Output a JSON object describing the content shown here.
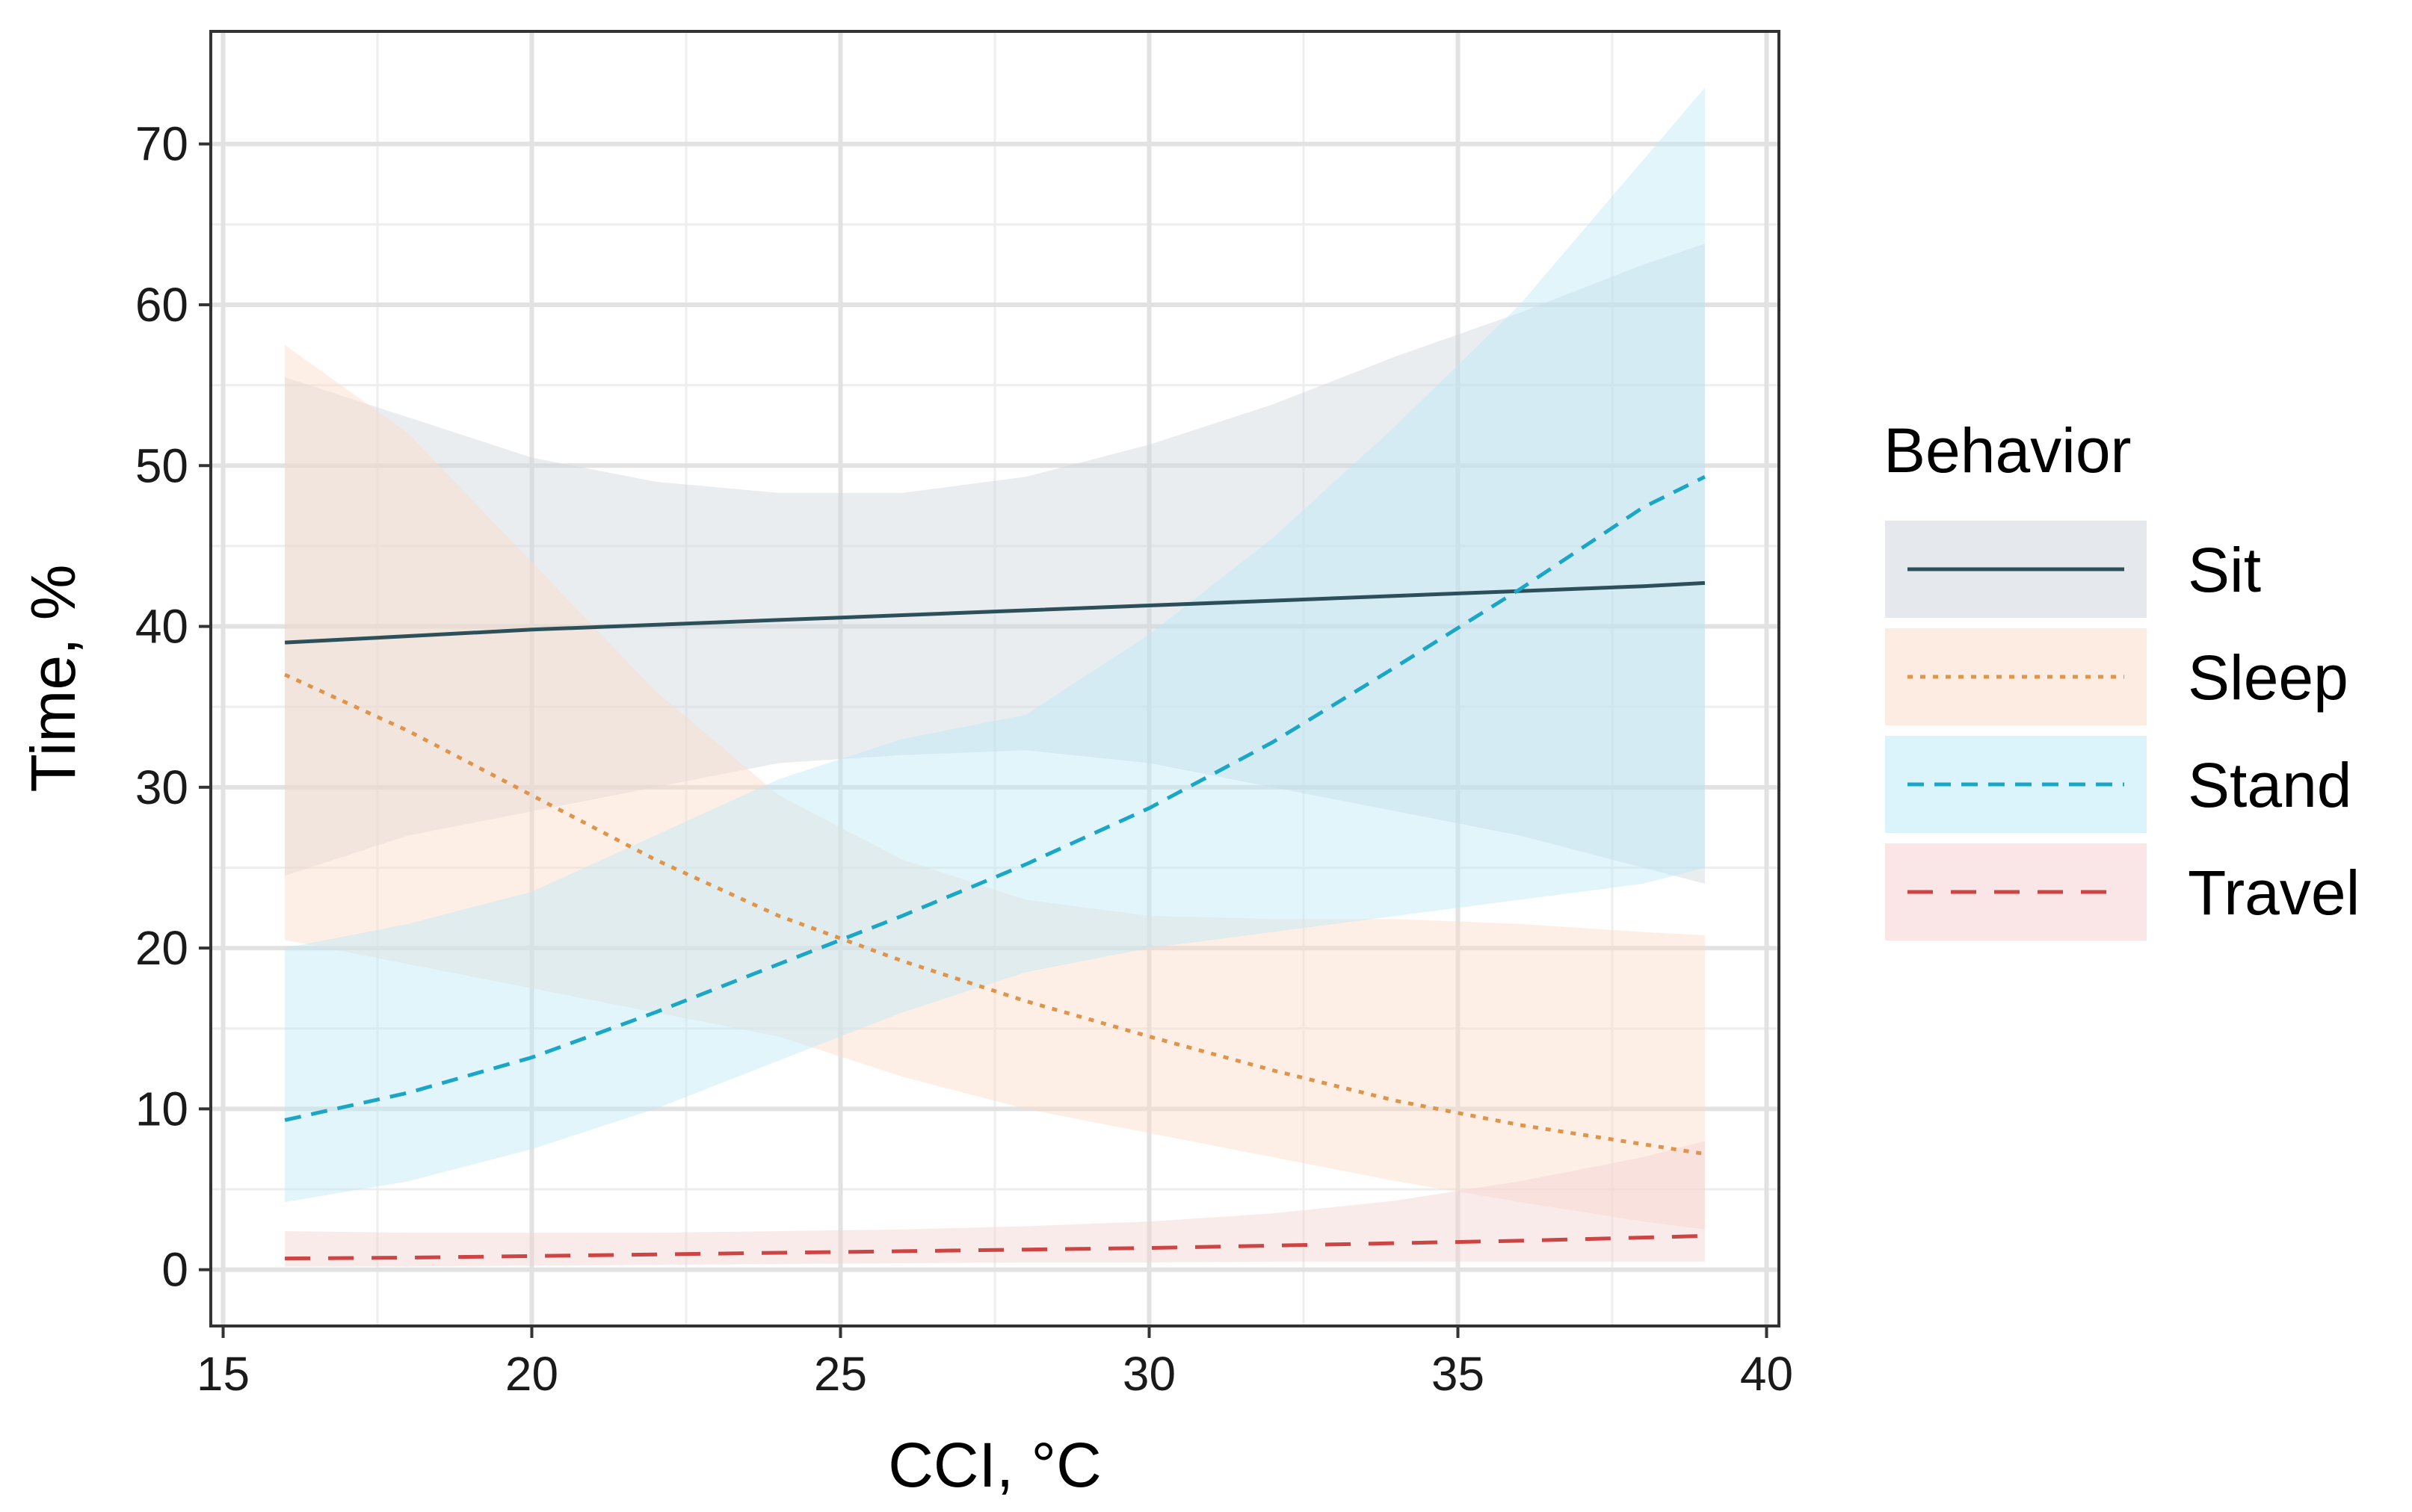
{
  "chart_data": {
    "type": "line",
    "title": "",
    "xlabel": "CCI, °C",
    "ylabel": "Time, %",
    "xlim": [
      14.8,
      40.2
    ],
    "ylim": [
      -3.5,
      77
    ],
    "grid": true,
    "legend_position": "right",
    "legend_title": "Behavior",
    "x_ticks": [
      15,
      20,
      25,
      30,
      35,
      40
    ],
    "y_ticks": [
      0,
      10,
      20,
      30,
      40,
      50,
      60,
      70
    ],
    "x_tick_labels": [
      "15",
      "20",
      "25",
      "30",
      "35",
      "40"
    ],
    "y_tick_labels": [
      "0",
      "10",
      "20",
      "30",
      "40",
      "50",
      "60",
      "70"
    ],
    "x": [
      16,
      18,
      20,
      22,
      24,
      26,
      28,
      30,
      32,
      34,
      36,
      38,
      39
    ],
    "series": [
      {
        "name": "Sit",
        "color": "#2c4f5a",
        "band_color": "#cfd6de",
        "dash": "solid",
        "values": [
          39.0,
          39.4,
          39.8,
          40.1,
          40.4,
          40.7,
          41.0,
          41.3,
          41.6,
          41.9,
          42.2,
          42.5,
          42.7
        ],
        "lower": [
          24.5,
          27.0,
          28.5,
          30.0,
          31.5,
          32.0,
          32.3,
          31.5,
          30.0,
          28.5,
          27.0,
          25.0,
          24.0
        ],
        "upper": [
          55.5,
          53.0,
          50.5,
          49.0,
          48.3,
          48.3,
          49.3,
          51.3,
          53.8,
          56.8,
          59.5,
          62.5,
          63.8
        ]
      },
      {
        "name": "Sleep",
        "color": "#e0944a",
        "band_color": "#fbdcc8",
        "dash": "dotted",
        "values": [
          37.0,
          33.5,
          29.5,
          25.5,
          22.0,
          19.2,
          16.7,
          14.5,
          12.4,
          10.5,
          9.0,
          7.8,
          7.2
        ],
        "lower": [
          20.5,
          19.0,
          17.5,
          16.0,
          14.5,
          12.0,
          10.0,
          8.5,
          7.0,
          5.5,
          4.2,
          3.0,
          2.5
        ],
        "upper": [
          57.5,
          52.0,
          44.0,
          36.0,
          29.5,
          25.5,
          23.0,
          22.0,
          21.8,
          21.8,
          21.5,
          21.0,
          20.8
        ]
      },
      {
        "name": "Stand",
        "color": "#1aa7c7",
        "band_color": "#bde9f7",
        "dash": "dashed",
        "values": [
          9.3,
          11.0,
          13.2,
          16.0,
          19.0,
          22.0,
          25.2,
          28.7,
          32.8,
          37.5,
          42.3,
          47.4,
          49.3
        ],
        "lower": [
          4.2,
          5.5,
          7.5,
          10.0,
          13.0,
          16.0,
          18.5,
          20.0,
          21.0,
          22.0,
          23.0,
          24.0,
          25.0
        ],
        "upper": [
          20.0,
          21.5,
          23.5,
          27.0,
          30.5,
          33.0,
          34.5,
          39.5,
          45.5,
          52.5,
          60.0,
          69.0,
          73.5
        ]
      },
      {
        "name": "Travel",
        "color": "#cc4444",
        "band_color": "#f5d2d2",
        "dash": "longdash",
        "values": [
          0.7,
          0.75,
          0.85,
          0.95,
          1.05,
          1.15,
          1.25,
          1.35,
          1.5,
          1.65,
          1.8,
          2.0,
          2.1
        ],
        "lower": [
          0.2,
          0.2,
          0.25,
          0.3,
          0.35,
          0.4,
          0.45,
          0.45,
          0.5,
          0.5,
          0.5,
          0.5,
          0.5
        ],
        "upper": [
          2.4,
          2.3,
          2.3,
          2.3,
          2.4,
          2.5,
          2.7,
          3.0,
          3.5,
          4.3,
          5.5,
          7.0,
          8.0
        ]
      }
    ]
  }
}
